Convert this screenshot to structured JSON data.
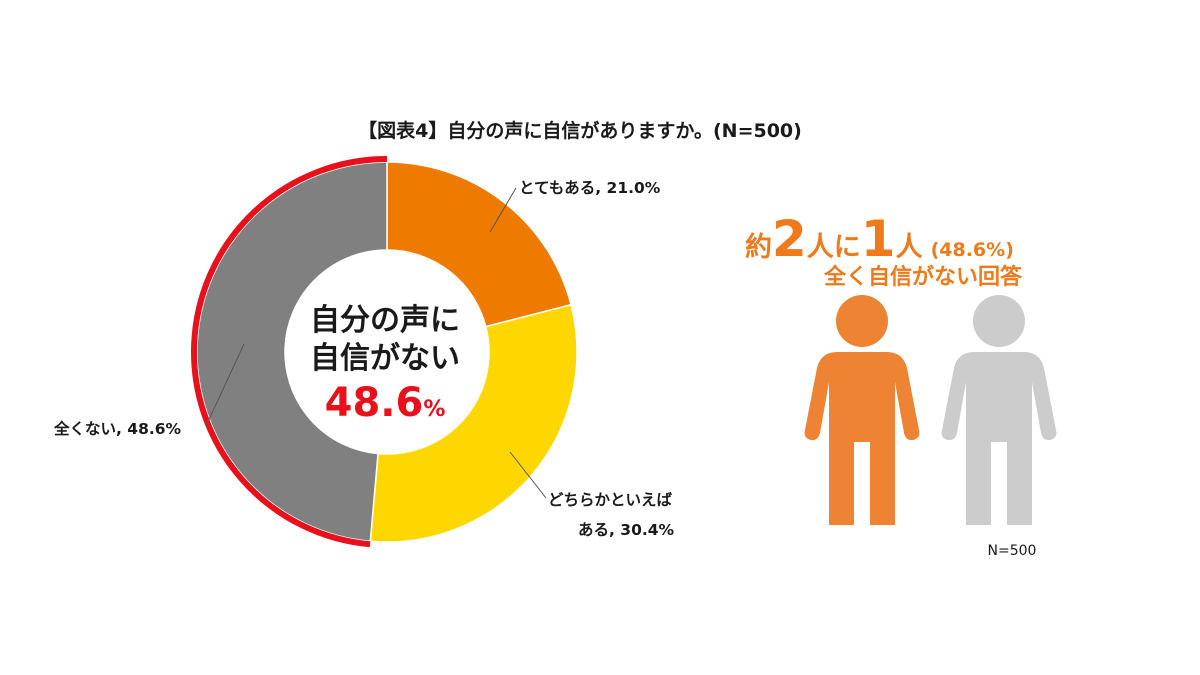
{
  "chart_data": {
    "type": "pie",
    "title": "【図表4】自分の声に自信がありますか。(N=500)",
    "slices": [
      {
        "label": "とてもある",
        "value": 21.0,
        "value_text": "21.0%",
        "color": "#ee7a00"
      },
      {
        "label": "どちらかといえばある",
        "value": 30.4,
        "value_text": "30.4%",
        "color": "#ffd700"
      },
      {
        "label": "全くない",
        "value": 48.6,
        "value_text": "48.6%",
        "color": "#808080"
      }
    ],
    "highlight_arc_color": "#e8101a",
    "center": {
      "line1": "自分の声に",
      "line2": "自信がない",
      "value": "48.6",
      "unit": "%"
    }
  },
  "labels": {
    "slice1_label": "とてもある, 21.0%",
    "slice2_line1": "どちらかといえば",
    "slice2_line2": "ある, 30.4%",
    "slice3_label": "全くない, 48.6%"
  },
  "infographic": {
    "head_pre": "約",
    "head_num1": "2",
    "head_mid": "人に",
    "head_num2": "1",
    "head_post": "人",
    "head_pct": "(48.6%)",
    "subline": "全く自信がない回答",
    "sample_note": "N=500",
    "person_colors": [
      "#ee8433",
      "#cccccc"
    ],
    "person_icons": [
      "person-icon",
      "person-icon"
    ]
  }
}
